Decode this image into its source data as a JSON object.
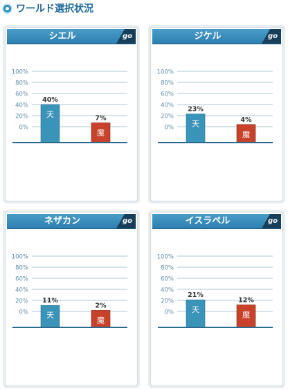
{
  "page_title": "ワールド選択状況",
  "header_icon": "circle-bullet-icon",
  "colors": {
    "angel_bar": "#3a93b8",
    "demon_bar": "#c8412b",
    "grid": "#a9c8da",
    "axis": "#2b6a8f",
    "tick_text": "#5f8ea8",
    "value_text": "#333333"
  },
  "worlds": [
    {
      "name": "シエル",
      "go_label": "go",
      "chart_data": {
        "type": "bar",
        "categories": [
          "天",
          "魔"
        ],
        "values": [
          40,
          7
        ],
        "value_labels": [
          "40%",
          "7%"
        ],
        "yticks": [
          "100%",
          "80%",
          "60%",
          "40%",
          "20%",
          "0%"
        ]
      }
    },
    {
      "name": "ジケル",
      "go_label": "go",
      "chart_data": {
        "type": "bar",
        "categories": [
          "天",
          "魔"
        ],
        "values": [
          23,
          4
        ],
        "value_labels": [
          "23%",
          "4%"
        ],
        "yticks": [
          "100%",
          "80%",
          "60%",
          "40%",
          "20%",
          "0%"
        ]
      }
    },
    {
      "name": "ネザカン",
      "go_label": "go",
      "chart_data": {
        "type": "bar",
        "categories": [
          "天",
          "魔"
        ],
        "values": [
          11,
          2
        ],
        "value_labels": [
          "11%",
          "2%"
        ],
        "yticks": [
          "100%",
          "80%",
          "60%",
          "40%",
          "20%",
          "0%"
        ]
      }
    },
    {
      "name": "イスラペル",
      "go_label": "go",
      "chart_data": {
        "type": "bar",
        "categories": [
          "天",
          "魔"
        ],
        "values": [
          21,
          12
        ],
        "value_labels": [
          "21%",
          "12%"
        ],
        "yticks": [
          "100%",
          "80%",
          "60%",
          "40%",
          "20%",
          "0%"
        ]
      }
    }
  ]
}
